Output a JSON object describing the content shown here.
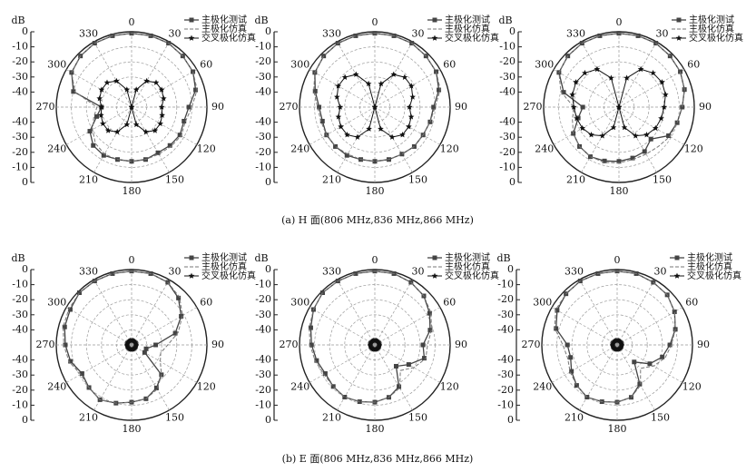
{
  "chart_data": [
    {
      "type": "polar",
      "ylabel": "dB",
      "rlim": [
        -50,
        0
      ],
      "rticks": [
        0,
        -10,
        -20,
        -30,
        -40
      ],
      "thetaticks": [
        0,
        30,
        60,
        90,
        120,
        150,
        180,
        210,
        240,
        270,
        300,
        330
      ],
      "theta": [
        0,
        15,
        30,
        45,
        60,
        75,
        90,
        105,
        120,
        135,
        150,
        165,
        180,
        195,
        210,
        225,
        240,
        255,
        270,
        285,
        300,
        315,
        330,
        345
      ],
      "series": [
        {
          "name": "主极化测试",
          "color": "#444444",
          "values": [
            -1,
            -1,
            -1,
            -2,
            -3,
            -6,
            -12,
            -14,
            -13,
            -14,
            -15,
            -14,
            -14,
            -14,
            -13,
            -14,
            -18,
            -26,
            -30,
            -10,
            -4,
            -2,
            -1,
            -1
          ]
        },
        {
          "name": "主极化仿真",
          "color": "#777777",
          "values": [
            -1,
            -1,
            -1,
            -2,
            -3,
            -5,
            -10,
            -13,
            -12,
            -13,
            -14,
            -14,
            -14,
            -14,
            -14,
            -16,
            -20,
            -24,
            -27,
            -11,
            -4,
            -2,
            -1,
            -1
          ]
        },
        {
          "name": "交叉极化仿真",
          "color": "#111111",
          "values": [
            -50,
            -38,
            -30,
            -27,
            -27,
            -28,
            -30,
            -29,
            -28,
            -28,
            -31,
            -38,
            -50,
            -38,
            -31,
            -28,
            -28,
            -29,
            -30,
            -28,
            -27,
            -27,
            -30,
            -38
          ]
        }
      ]
    },
    {
      "type": "polar",
      "ylabel": "dB",
      "rlim": [
        -50,
        0
      ],
      "rticks": [
        0,
        -10,
        -20,
        -30,
        -40
      ],
      "thetaticks": [
        0,
        30,
        60,
        90,
        120,
        150,
        180,
        210,
        240,
        270,
        300,
        330
      ],
      "theta": [
        0,
        15,
        30,
        45,
        60,
        75,
        90,
        105,
        120,
        135,
        150,
        165,
        180,
        195,
        210,
        225,
        240,
        255,
        270,
        285,
        300,
        315,
        330,
        345
      ],
      "series": [
        {
          "name": "主极化测试",
          "color": "#444444",
          "values": [
            -1,
            -1,
            -1,
            -2,
            -3,
            -6,
            -11,
            -12,
            -13,
            -13,
            -14,
            -14,
            -14,
            -14,
            -13,
            -13,
            -13,
            -14,
            -13,
            -9,
            -4,
            -2,
            -1,
            -1
          ]
        },
        {
          "name": "主极化仿真",
          "color": "#777777",
          "values": [
            -1,
            -1,
            -1,
            -2,
            -3,
            -5,
            -10,
            -12,
            -13,
            -13,
            -14,
            -14,
            -14,
            -14,
            -14,
            -13,
            -13,
            -13,
            -12,
            -8,
            -4,
            -2,
            -1,
            -1
          ]
        },
        {
          "name": "交叉极化仿真",
          "color": "#111111",
          "values": [
            -50,
            -34,
            -25,
            -22,
            -22,
            -24,
            -27,
            -25,
            -24,
            -24,
            -27,
            -35,
            -50,
            -35,
            -27,
            -24,
            -24,
            -25,
            -27,
            -24,
            -22,
            -22,
            -25,
            -34
          ]
        }
      ]
    },
    {
      "type": "polar",
      "ylabel": "dB",
      "rlim": [
        -50,
        0
      ],
      "rticks": [
        0,
        -10,
        -20,
        -30,
        -40
      ],
      "thetaticks": [
        0,
        30,
        60,
        90,
        120,
        150,
        180,
        210,
        240,
        270,
        300,
        330
      ],
      "theta": [
        0,
        15,
        30,
        45,
        60,
        75,
        90,
        105,
        120,
        135,
        150,
        165,
        180,
        195,
        210,
        225,
        240,
        255,
        270,
        285,
        300,
        315,
        330,
        345
      ],
      "series": [
        {
          "name": "主极化测试",
          "color": "#444444",
          "values": [
            -1,
            -1,
            -1,
            -2,
            -3,
            -5,
            -8,
            -10,
            -12,
            -20,
            -16,
            -15,
            -14,
            -13,
            -12,
            -13,
            -15,
            -22,
            -26,
            -12,
            -4,
            -2,
            -1,
            -1
          ]
        },
        {
          "name": "主极化仿真",
          "color": "#777777",
          "values": [
            -1,
            -1,
            -1,
            -2,
            -3,
            -5,
            -8,
            -10,
            -11,
            -13,
            -14,
            -14,
            -13,
            -12,
            -12,
            -13,
            -15,
            -18,
            -20,
            -10,
            -4,
            -2,
            -1,
            -1
          ]
        },
        {
          "name": "交叉极化仿真",
          "color": "#111111",
          "values": [
            -50,
            -30,
            -21,
            -18,
            -17,
            -18,
            -20,
            -21,
            -22,
            -24,
            -28,
            -36,
            -50,
            -36,
            -28,
            -24,
            -22,
            -21,
            -20,
            -18,
            -17,
            -18,
            -21,
            -30
          ]
        }
      ]
    },
    {
      "type": "polar",
      "ylabel": "dB",
      "rlim": [
        -50,
        0
      ],
      "rticks": [
        0,
        -10,
        -20,
        -30,
        -40
      ],
      "thetaticks": [
        0,
        30,
        60,
        90,
        120,
        150,
        180,
        210,
        240,
        270,
        300,
        330
      ],
      "theta": [
        0,
        15,
        30,
        45,
        60,
        75,
        90,
        105,
        120,
        135,
        150,
        165,
        180,
        195,
        210,
        225,
        240,
        255,
        270,
        285,
        300,
        315,
        330,
        345
      ],
      "series": [
        {
          "name": "主极化测试",
          "color": "#444444",
          "values": [
            -1,
            -1,
            -2,
            -6,
            -12,
            -20,
            -34,
            -40,
            -40,
            -22,
            -17,
            -13,
            -12,
            -10,
            -8,
            -10,
            -12,
            -8,
            -6,
            -4,
            -3,
            -1,
            -1,
            -1
          ]
        },
        {
          "name": "主极化仿真",
          "color": "#777777",
          "values": [
            -1,
            -1,
            -2,
            -5,
            -11,
            -18,
            -26,
            -30,
            -28,
            -22,
            -16,
            -13,
            -12,
            -10,
            -8,
            -10,
            -11,
            -7,
            -5,
            -3,
            -2,
            -1,
            -1,
            -1
          ]
        },
        {
          "name": "交叉极化仿真",
          "color": "#111111",
          "values": [
            -47,
            -47,
            -47,
            -47,
            -47,
            -47,
            -47,
            -47,
            -47,
            -47,
            -47,
            -47,
            -47,
            -47,
            -47,
            -47,
            -47,
            -47,
            -47,
            -47,
            -47,
            -47,
            -47,
            -47
          ]
        }
      ]
    },
    {
      "type": "polar",
      "ylabel": "dB",
      "rlim": [
        -50,
        0
      ],
      "rticks": [
        0,
        -10,
        -20,
        -30,
        -40
      ],
      "thetaticks": [
        0,
        30,
        60,
        90,
        120,
        150,
        180,
        210,
        240,
        270,
        300,
        330
      ],
      "theta": [
        0,
        15,
        30,
        45,
        60,
        75,
        90,
        105,
        120,
        135,
        150,
        165,
        180,
        195,
        210,
        225,
        240,
        255,
        270,
        285,
        300,
        315,
        330,
        345
      ],
      "series": [
        {
          "name": "主极化测试",
          "color": "#444444",
          "values": [
            -1,
            -1,
            -2,
            -4,
            -8,
            -12,
            -18,
            -16,
            -24,
            -30,
            -18,
            -14,
            -12,
            -11,
            -10,
            -11,
            -12,
            -10,
            -8,
            -6,
            -3,
            -1,
            -1,
            -1
          ]
        },
        {
          "name": "主极化仿真",
          "color": "#777777",
          "values": [
            -1,
            -1,
            -2,
            -4,
            -7,
            -11,
            -15,
            -15,
            -20,
            -26,
            -17,
            -14,
            -12,
            -11,
            -10,
            -11,
            -11,
            -9,
            -7,
            -5,
            -3,
            -1,
            -1,
            -1
          ]
        },
        {
          "name": "交叉极化仿真",
          "color": "#111111",
          "values": [
            -47,
            -47,
            -47,
            -47,
            -47,
            -47,
            -47,
            -47,
            -47,
            -47,
            -47,
            -47,
            -47,
            -47,
            -47,
            -47,
            -47,
            -47,
            -47,
            -47,
            -47,
            -47,
            -47,
            -47
          ]
        }
      ]
    },
    {
      "type": "polar",
      "ylabel": "dB",
      "rlim": [
        -50,
        0
      ],
      "rticks": [
        0,
        -10,
        -20,
        -30,
        -40
      ],
      "thetaticks": [
        0,
        30,
        60,
        90,
        120,
        150,
        180,
        210,
        240,
        270,
        300,
        330
      ],
      "theta": [
        0,
        15,
        30,
        45,
        60,
        75,
        90,
        105,
        120,
        135,
        150,
        165,
        180,
        195,
        210,
        225,
        240,
        255,
        270,
        285,
        300,
        315,
        330,
        345
      ],
      "series": [
        {
          "name": "主极化测试",
          "color": "#444444",
          "values": [
            -1,
            -1,
            -2,
            -3,
            -6,
            -10,
            -15,
            -19,
            -25,
            -34,
            -20,
            -14,
            -12,
            -11,
            -10,
            -12,
            -15,
            -18,
            -17,
            -8,
            -4,
            -2,
            -1,
            -1
          ]
        },
        {
          "name": "主极化仿真",
          "color": "#777777",
          "values": [
            -1,
            -1,
            -2,
            -3,
            -6,
            -10,
            -14,
            -17,
            -22,
            -28,
            -19,
            -14,
            -12,
            -11,
            -10,
            -12,
            -14,
            -16,
            -14,
            -7,
            -3,
            -2,
            -1,
            -1
          ]
        },
        {
          "name": "交叉极化仿真",
          "color": "#111111",
          "values": [
            -47,
            -47,
            -47,
            -47,
            -47,
            -47,
            -47,
            -47,
            -47,
            -47,
            -47,
            -47,
            -47,
            -47,
            -47,
            -47,
            -47,
            -47,
            -47,
            -47,
            -47,
            -47,
            -47,
            -47
          ]
        }
      ]
    }
  ],
  "captions": [
    "(a) H 面(806 MHz,836 MHz,866 MHz)",
    "(b) E 面(806 MHz,836 MHz,866 MHz)"
  ]
}
